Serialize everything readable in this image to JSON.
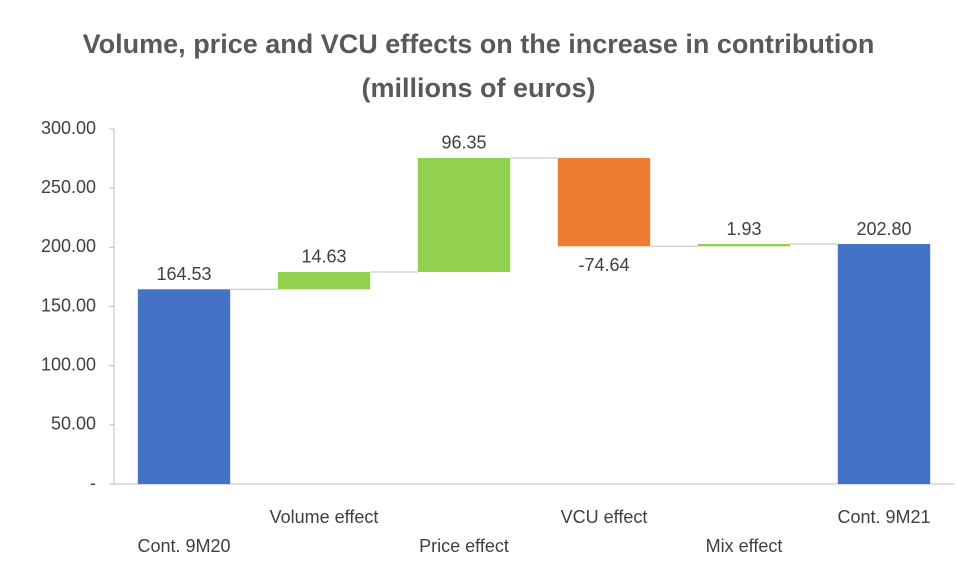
{
  "chart_data": {
    "type": "waterfall",
    "title": "Volume, price and VCU effects on the increase in contribution (millions of euros)",
    "categories": [
      "Cont. 9M20",
      "Volume effect",
      "Price effect",
      "VCU effect",
      "Mix effect",
      "Cont. 9M21"
    ],
    "values": [
      164.53,
      14.63,
      96.35,
      -74.64,
      1.93,
      202.8
    ],
    "value_labels": [
      "164.53",
      "14.63",
      "96.35",
      "-74.64",
      "1.93",
      "202.80"
    ],
    "totals": [
      0,
      5
    ],
    "total_color": "#4472c4",
    "increase_color": "#92d050",
    "decrease_color": "#ed7d31",
    "ylim": [
      0,
      300
    ],
    "yticks": [
      {
        "value": 0,
        "label": "-"
      },
      {
        "value": 50,
        "label": "50.00"
      },
      {
        "value": 100,
        "label": "100.00"
      },
      {
        "value": 150,
        "label": "150.00"
      },
      {
        "value": 200,
        "label": "200.00"
      },
      {
        "value": 250,
        "label": "250.00"
      },
      {
        "value": 300,
        "label": "300.00"
      }
    ],
    "grid": false
  }
}
